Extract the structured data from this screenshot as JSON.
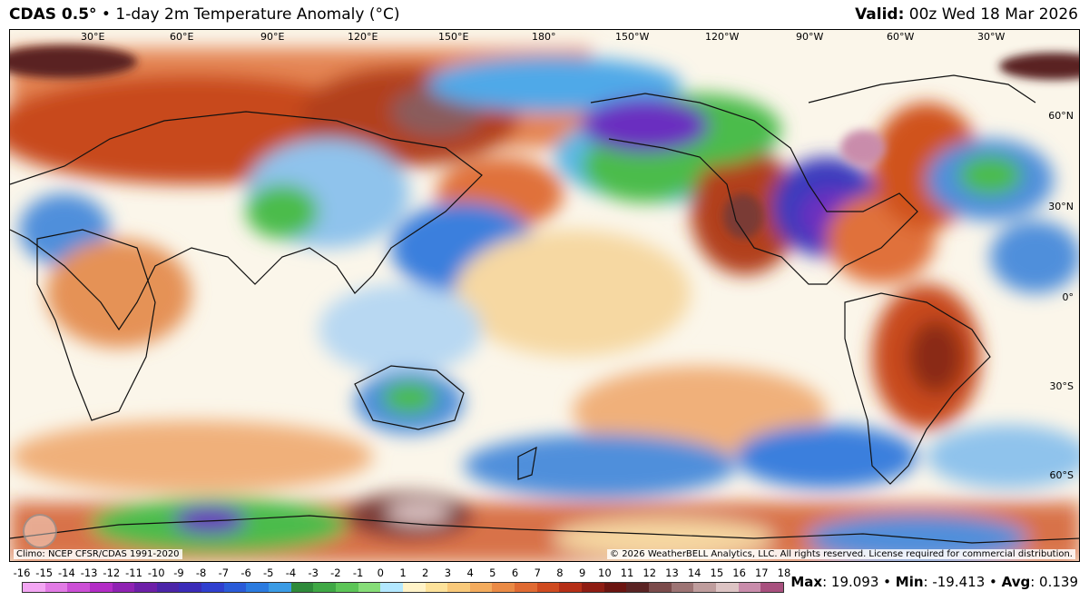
{
  "header": {
    "model": "CDAS 0.5°",
    "separator": " • ",
    "product": "1-day 2m Temperature Anomaly (°C)",
    "valid_label": "Valid:",
    "valid_value": " 00z Wed 18 Mar 2026"
  },
  "map": {
    "longitude_labels": [
      "30°E",
      "60°E",
      "90°E",
      "120°E",
      "150°E",
      "180°",
      "150°W",
      "120°W",
      "90°W",
      "60°W",
      "30°W"
    ],
    "latitude_labels": [
      "60°N",
      "30°N",
      "0°",
      "30°S",
      "60°S"
    ],
    "palette": {
      "ocean_neutral": "#ffffff",
      "warm_light": "#f6e3a8",
      "warm_mid": "#eea36a",
      "warm_strong": "#d0531f",
      "warm_extreme": "#7a3a34",
      "cool_light": "#b8d8f2",
      "cool_mid": "#4f8fdb",
      "cool_strong": "#2c5bc9",
      "cold_green": "#4cbc4c",
      "cold_purple": "#6a2fc0"
    }
  },
  "footer": {
    "climo": "Climo: NCEP CFSR/CDAS 1991-2020",
    "copyright": "© 2026 WeatherBELL Analytics, LLC. All rights reserved. License required for commercial distribution."
  },
  "scale": {
    "ticks": [
      "-16",
      "-15",
      "-14",
      "-13",
      "-12",
      "-11",
      "-10",
      "-9",
      "-8",
      "-7",
      "-6",
      "-5",
      "-4",
      "-3",
      "-2",
      "-1",
      "0",
      "1",
      "2",
      "3",
      "4",
      "5",
      "6",
      "7",
      "8",
      "9",
      "10",
      "11",
      "12",
      "13",
      "14",
      "15",
      "16",
      "17",
      "18"
    ],
    "colors": [
      "#f3a6f3",
      "#e27be5",
      "#cc4fd6",
      "#b32cc6",
      "#8f22b3",
      "#6d1fa8",
      "#4b24a8",
      "#3a2bb8",
      "#2f3fcf",
      "#2a5bd8",
      "#2b7be0",
      "#3a9be5",
      "#2e8a3a",
      "#3fa845",
      "#5cc557",
      "#86dd78",
      "#b3e8ff",
      "#fff3c8",
      "#fde29a",
      "#f9c97a",
      "#f3ab5d",
      "#ea8a45",
      "#e06a32",
      "#cf4a1f",
      "#b52e16",
      "#8e1c12",
      "#6b1410",
      "#5a2323",
      "#7b4b4b",
      "#9d7474",
      "#bf9d9d",
      "#ddc4c4",
      "#c98cab",
      "#a8507e"
    ]
  },
  "stats": {
    "max_label": "Max",
    "max_value": ": 19.093 • ",
    "min_label": "Min",
    "min_value": ": -19.413 • ",
    "avg_label": "Avg",
    "avg_value": ": 0.139"
  }
}
